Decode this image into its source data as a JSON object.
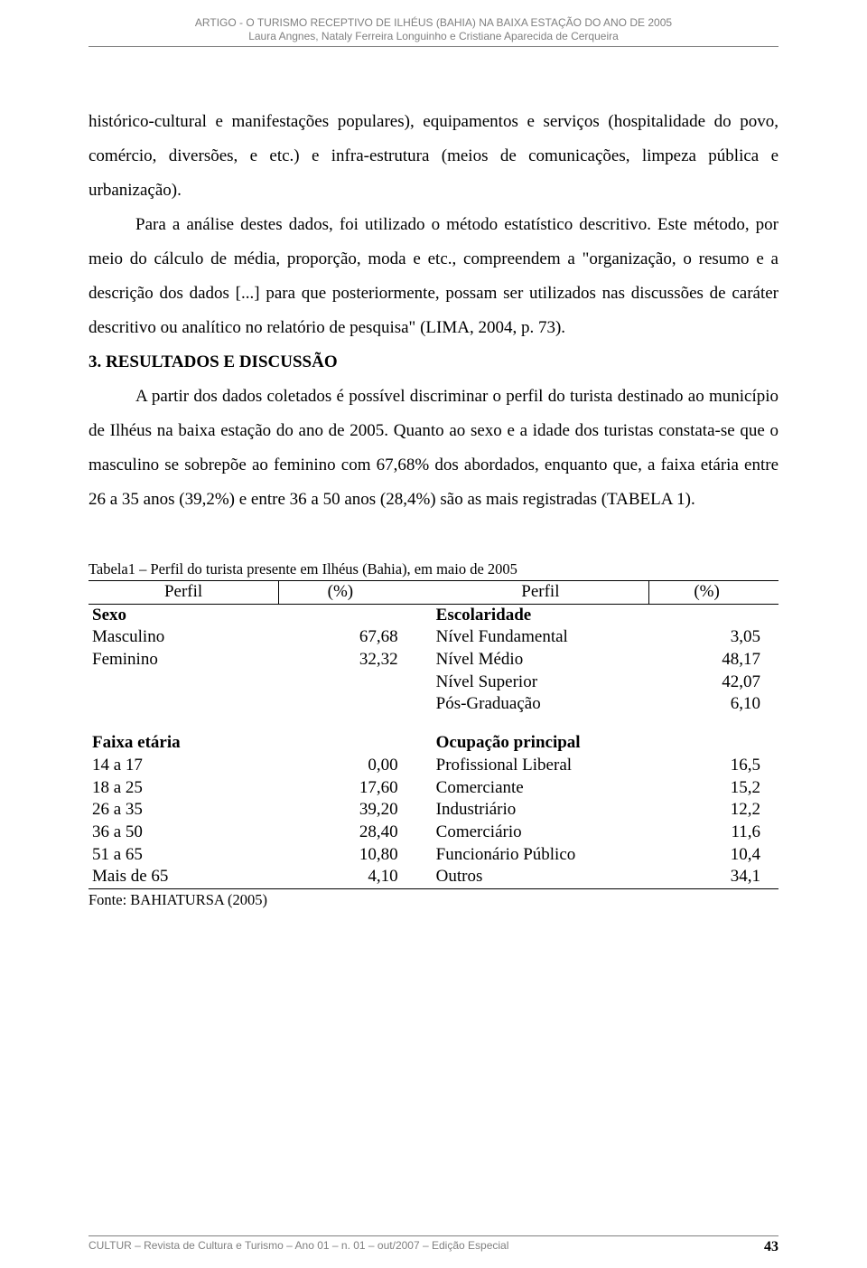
{
  "header": {
    "line1": "ARTIGO - O TURISMO RECEPTIVO DE ILHÉUS (BAHIA) NA BAIXA ESTAÇÃO DO ANO DE 2005",
    "line2": "Laura Angnes, Nataly Ferreira Longuinho e Cristiane Aparecida de Cerqueira"
  },
  "para1": "histórico-cultural e manifestações populares), equipamentos e serviços (hospitalidade do povo, comércio, diversões, e etc.) e infra-estrutura (meios de comunicações, limpeza pública e urbanização).",
  "para2": "Para a análise destes dados, foi utilizado o método estatístico descritivo. Este método, por meio do cálculo de média, proporção, moda e etc., compreendem a \"organização, o resumo e a descrição dos dados [...] para que posteriormente, possam ser utilizados nas discussões de caráter descritivo ou analítico no relatório de pesquisa\" (LIMA, 2004, p. 73).",
  "section_title": "3. RESULTADOS E DISCUSSÃO",
  "para3": "A partir dos dados coletados é possível discriminar o perfil do turista destinado ao município de Ilhéus na baixa estação do ano de 2005. Quanto ao sexo e a idade dos turistas constata-se que o masculino se sobrepõe ao feminino com 67,68% dos abordados, enquanto que, a faixa etária entre 26 a 35 anos (39,2%) e entre 36 a 50 anos (28,4%) são as mais registradas (TABELA 1).",
  "table": {
    "caption": "Tabela1 – Perfil do turista presente em Ilhéus (Bahia), em maio de 2005",
    "columns": [
      "Perfil",
      "(%)",
      "Perfil",
      "(%)"
    ],
    "block1": {
      "left_title": "Sexo",
      "right_title": "Escolaridade",
      "rows": [
        {
          "l": "Masculino",
          "lv": "67,68",
          "r": "Nível Fundamental",
          "rv": "3,05"
        },
        {
          "l": "Feminino",
          "lv": "32,32",
          "r": "Nível Médio",
          "rv": "48,17"
        },
        {
          "l": "",
          "lv": "",
          "r": "Nível Superior",
          "rv": "42,07"
        },
        {
          "l": "",
          "lv": "",
          "r": "Pós-Graduação",
          "rv": "6,10"
        }
      ]
    },
    "block2": {
      "left_title": "Faixa etária",
      "right_title": "Ocupação principal",
      "rows": [
        {
          "l": "14 a 17",
          "lv": "0,00",
          "r": "Profissional Liberal",
          "rv": "16,5"
        },
        {
          "l": "18 a 25",
          "lv": "17,60",
          "r": "Comerciante",
          "rv": "15,2"
        },
        {
          "l": "26 a 35",
          "lv": "39,20",
          "r": "Industriário",
          "rv": "12,2"
        },
        {
          "l": "36 a 50",
          "lv": "28,40",
          "r": "Comerciário",
          "rv": "11,6"
        },
        {
          "l": "51 a 65",
          "lv": "10,80",
          "r": "Funcionário Público",
          "rv": "10,4"
        },
        {
          "l": "Mais de 65",
          "lv": "4,10",
          "r": "Outros",
          "rv": "34,1"
        }
      ]
    },
    "source": "Fonte: BAHIATURSA (2005)"
  },
  "footer": {
    "text": "CULTUR – Revista de Cultura e Turismo – Ano 01 – n. 01 – out/2007 – Edição Especial",
    "page": "43"
  }
}
